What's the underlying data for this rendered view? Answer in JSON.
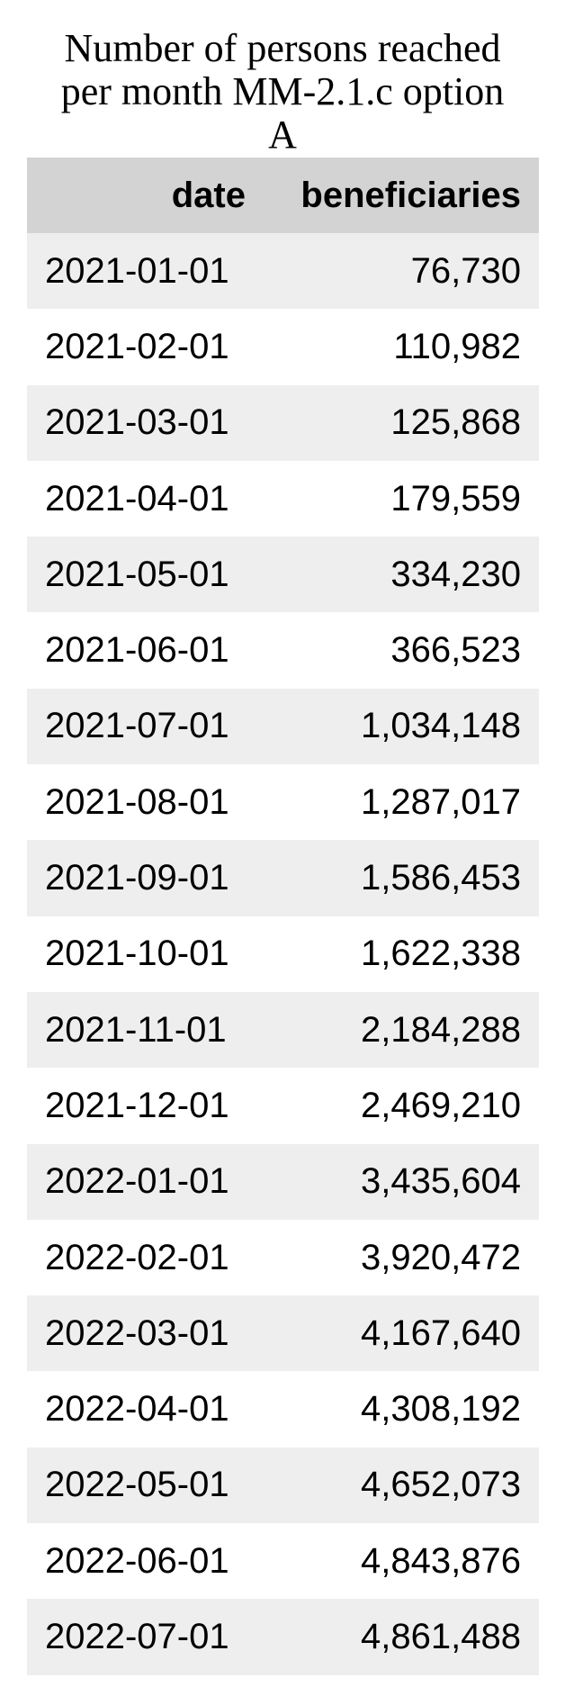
{
  "chart_data": {
    "type": "table",
    "title_lines": [
      "Number of persons reached",
      "per month MM-2.1.c option",
      "A"
    ],
    "columns": [
      "date",
      "beneficiaries"
    ],
    "rows": [
      [
        "2021-01-01",
        "76,730"
      ],
      [
        "2021-02-01",
        "110,982"
      ],
      [
        "2021-03-01",
        "125,868"
      ],
      [
        "2021-04-01",
        "179,559"
      ],
      [
        "2021-05-01",
        "334,230"
      ],
      [
        "2021-06-01",
        "366,523"
      ],
      [
        "2021-07-01",
        "1,034,148"
      ],
      [
        "2021-08-01",
        "1,287,017"
      ],
      [
        "2021-09-01",
        "1,586,453"
      ],
      [
        "2021-10-01",
        "1,622,338"
      ],
      [
        "2021-11-01",
        "2,184,288"
      ],
      [
        "2021-12-01",
        "2,469,210"
      ],
      [
        "2022-01-01",
        "3,435,604"
      ],
      [
        "2022-02-01",
        "3,920,472"
      ],
      [
        "2022-03-01",
        "4,167,640"
      ],
      [
        "2022-04-01",
        "4,308,192"
      ],
      [
        "2022-05-01",
        "4,652,073"
      ],
      [
        "2022-06-01",
        "4,843,876"
      ],
      [
        "2022-07-01",
        "4,861,488"
      ]
    ],
    "colors": {
      "header_background": "#d3d3d3",
      "stripe_background": "#eeeeee",
      "row_background": "#ffffff"
    }
  }
}
